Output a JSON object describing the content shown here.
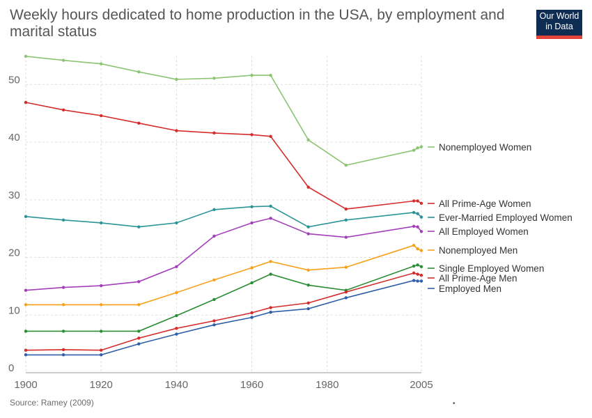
{
  "header": {
    "title": "Weekly hours dedicated to home production in the USA, by employment and marital status",
    "logo_line1": "Our World",
    "logo_line2": "in Data"
  },
  "footer": {
    "source": "Source: Ramey (2009)",
    "mark": "•"
  },
  "colors": {
    "grid": "#dddddd",
    "logo_bg": "#0f2d52",
    "logo_bar": "#e2443a"
  },
  "chart_data": {
    "type": "line",
    "title": "Weekly hours dedicated to home production in the USA, by employment and marital status",
    "xlabel": "",
    "ylabel": "",
    "xlim": [
      1900,
      2005
    ],
    "ylim": [
      0,
      55
    ],
    "x_ticks": [
      1900,
      1920,
      1940,
      1960,
      1980,
      2005
    ],
    "y_ticks": [
      0,
      10,
      20,
      30,
      40,
      50
    ],
    "grid": true,
    "legend_placement": "right (labels at line ends)",
    "series": [
      {
        "name": "Nonemployed Women",
        "color": "#8cc473",
        "points": [
          [
            1900,
            54.9
          ],
          [
            1910,
            54.2
          ],
          [
            1920,
            53.6
          ],
          [
            1930,
            52.2
          ],
          [
            1940,
            50.9
          ],
          [
            1950,
            51.1
          ],
          [
            1960,
            51.6
          ],
          [
            1965,
            51.6
          ],
          [
            1975,
            40.4
          ],
          [
            1985,
            36.0
          ],
          [
            2003,
            38.6
          ],
          [
            2004,
            39.0
          ],
          [
            2005,
            39.2
          ]
        ]
      },
      {
        "name": "All Prime-Age Women",
        "color": "#d42b2b",
        "points": [
          [
            1900,
            46.9
          ],
          [
            1910,
            45.6
          ],
          [
            1920,
            44.6
          ],
          [
            1930,
            43.3
          ],
          [
            1940,
            42.0
          ],
          [
            1950,
            41.6
          ],
          [
            1960,
            41.3
          ],
          [
            1965,
            41.0
          ],
          [
            1975,
            32.2
          ],
          [
            1985,
            28.4
          ],
          [
            2003,
            29.8
          ],
          [
            2004,
            29.8
          ],
          [
            2005,
            29.4
          ]
        ]
      },
      {
        "name": "Ever-Married Employed Women",
        "color": "#2a9396",
        "points": [
          [
            1900,
            27.1
          ],
          [
            1910,
            26.5
          ],
          [
            1920,
            26.0
          ],
          [
            1930,
            25.3
          ],
          [
            1940,
            26.0
          ],
          [
            1950,
            28.3
          ],
          [
            1960,
            28.8
          ],
          [
            1965,
            28.9
          ],
          [
            1975,
            25.3
          ],
          [
            1985,
            26.5
          ],
          [
            2003,
            27.8
          ],
          [
            2004,
            27.6
          ],
          [
            2005,
            27.0
          ]
        ]
      },
      {
        "name": "All Employed Women",
        "color": "#a33fb9",
        "points": [
          [
            1900,
            14.3
          ],
          [
            1910,
            14.8
          ],
          [
            1920,
            15.1
          ],
          [
            1930,
            15.8
          ],
          [
            1940,
            18.4
          ],
          [
            1950,
            23.7
          ],
          [
            1960,
            26.0
          ],
          [
            1965,
            26.8
          ],
          [
            1975,
            24.1
          ],
          [
            1985,
            23.5
          ],
          [
            2003,
            25.4
          ],
          [
            2004,
            25.3
          ],
          [
            2005,
            24.5
          ]
        ]
      },
      {
        "name": "Nonemployed Men",
        "color": "#f7a11a",
        "points": [
          [
            1900,
            11.8
          ],
          [
            1910,
            11.8
          ],
          [
            1920,
            11.8
          ],
          [
            1930,
            11.8
          ],
          [
            1940,
            13.9
          ],
          [
            1950,
            16.1
          ],
          [
            1960,
            18.2
          ],
          [
            1965,
            19.3
          ],
          [
            1975,
            17.8
          ],
          [
            1985,
            18.3
          ],
          [
            2003,
            22.1
          ],
          [
            2004,
            21.5
          ],
          [
            2005,
            21.2
          ]
        ]
      },
      {
        "name": "Single Employed Women",
        "color": "#2a8c34",
        "points": [
          [
            1900,
            7.2
          ],
          [
            1910,
            7.2
          ],
          [
            1920,
            7.2
          ],
          [
            1930,
            7.2
          ],
          [
            1940,
            9.9
          ],
          [
            1950,
            12.7
          ],
          [
            1960,
            15.6
          ],
          [
            1965,
            17.1
          ],
          [
            1975,
            15.2
          ],
          [
            1985,
            14.3
          ],
          [
            2003,
            18.5
          ],
          [
            2004,
            18.7
          ],
          [
            2005,
            18.4
          ]
        ]
      },
      {
        "name": "All Prime-Age Men",
        "color": "#d42b2b",
        "points": [
          [
            1900,
            3.9
          ],
          [
            1910,
            4.0
          ],
          [
            1920,
            3.9
          ],
          [
            1930,
            6.0
          ],
          [
            1940,
            7.7
          ],
          [
            1950,
            9.0
          ],
          [
            1960,
            10.4
          ],
          [
            1965,
            11.3
          ],
          [
            1975,
            12.1
          ],
          [
            1985,
            14.0
          ],
          [
            2003,
            17.3
          ],
          [
            2004,
            17.1
          ],
          [
            2005,
            16.9
          ]
        ]
      },
      {
        "name": "Employed Men",
        "color": "#2e5fa6",
        "points": [
          [
            1900,
            3.1
          ],
          [
            1910,
            3.1
          ],
          [
            1920,
            3.1
          ],
          [
            1930,
            5.0
          ],
          [
            1940,
            6.7
          ],
          [
            1950,
            8.3
          ],
          [
            1960,
            9.6
          ],
          [
            1965,
            10.5
          ],
          [
            1975,
            11.1
          ],
          [
            1985,
            13.0
          ],
          [
            2003,
            16.0
          ],
          [
            2004,
            15.9
          ],
          [
            2005,
            15.9
          ]
        ]
      }
    ]
  }
}
